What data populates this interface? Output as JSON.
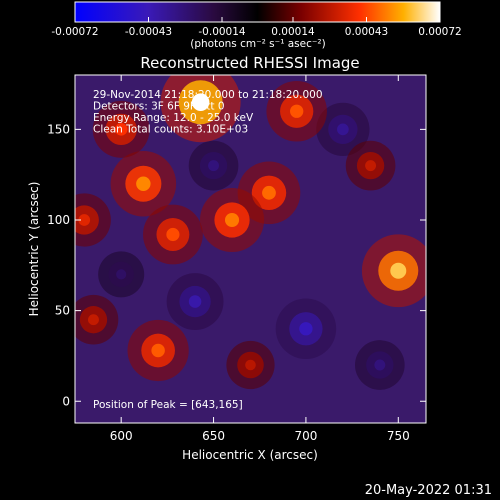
{
  "chart_data": {
    "type": "heatmap",
    "title": "Reconstructed RHESSI Image",
    "xlabel": "Heliocentric X (arcsec)",
    "ylabel": "Heliocentric Y (arcsec)",
    "xlim": [
      575,
      765
    ],
    "ylim": [
      -12,
      180
    ],
    "x_ticks": [
      600,
      650,
      700,
      750
    ],
    "y_ticks": [
      0,
      50,
      100,
      150
    ],
    "colorbar": {
      "range": [
        -0.00072,
        0.00072
      ],
      "ticks": [
        {
          "value": -0.00072,
          "label": "-0.00072"
        },
        {
          "value": -0.00043,
          "label": "-0.00043"
        },
        {
          "value": -0.00014,
          "label": "-0.00014"
        },
        {
          "value": 0.00014,
          "label": "0.00014"
        },
        {
          "value": 0.00043,
          "label": "0.00043"
        },
        {
          "value": 0.00072,
          "label": "0.00072"
        }
      ],
      "unit_label": "(photons cm⁻² s⁻¹ asec⁻²)"
    },
    "annotations": [
      "29-Nov-2014 21:18:20.000 to 21:18:20.000",
      "Detectors: 3F 6F 9F Att 0",
      "Energy Range: 12.0 - 25.0 keV",
      "Clean    Total counts: 3.10E+03"
    ],
    "peak_label": "Position of Peak = [643,165]",
    "peak": {
      "x": 643,
      "y": 165
    },
    "bright_regions": [
      {
        "x": 643,
        "y": 165,
        "value": 0.00072
      },
      {
        "x": 612,
        "y": 120,
        "value": 0.00052
      },
      {
        "x": 680,
        "y": 115,
        "value": 0.00048
      },
      {
        "x": 695,
        "y": 160,
        "value": 0.00045
      },
      {
        "x": 660,
        "y": 100,
        "value": 0.0005
      },
      {
        "x": 750,
        "y": 72,
        "value": 0.00062
      },
      {
        "x": 628,
        "y": 92,
        "value": 0.00044
      },
      {
        "x": 600,
        "y": 150,
        "value": 0.0004
      },
      {
        "x": 620,
        "y": 28,
        "value": 0.00046
      },
      {
        "x": 585,
        "y": 45,
        "value": 0.0003
      },
      {
        "x": 670,
        "y": 20,
        "value": 0.00028
      },
      {
        "x": 735,
        "y": 130,
        "value": 0.0003
      },
      {
        "x": 580,
        "y": 100,
        "value": 0.00035
      }
    ],
    "dark_regions": [
      {
        "x": 700,
        "y": 40,
        "value": -0.00045
      },
      {
        "x": 640,
        "y": 55,
        "value": -0.0004
      },
      {
        "x": 720,
        "y": 150,
        "value": -0.00035
      },
      {
        "x": 650,
        "y": 130,
        "value": -0.0003
      },
      {
        "x": 600,
        "y": 70,
        "value": -0.00025
      },
      {
        "x": 740,
        "y": 20,
        "value": -0.0003
      }
    ]
  },
  "footer": {
    "date": "20-May-2022 01:31"
  }
}
